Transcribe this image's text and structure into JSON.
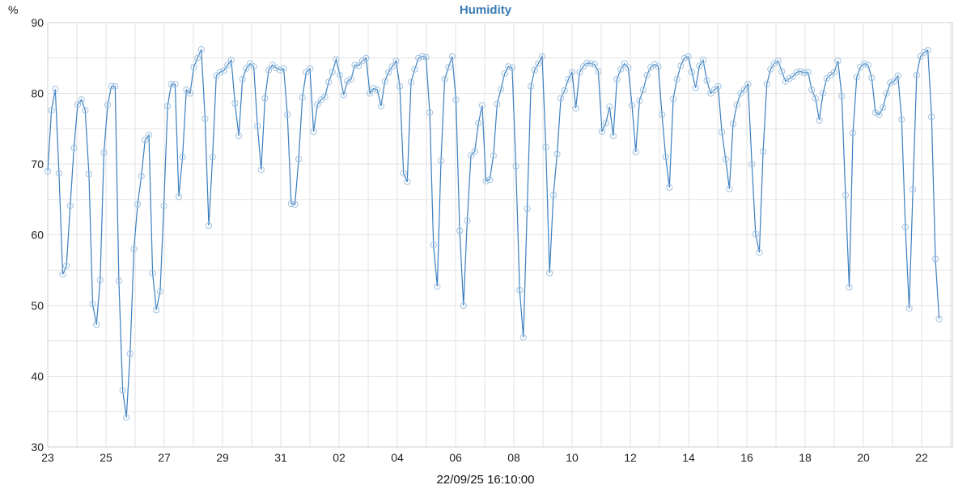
{
  "chart_data": {
    "type": "line",
    "title": "Humidity",
    "ylabel": "%",
    "footer_timestamp": "22/09/25 16:10:00",
    "ylim": [
      30,
      90
    ],
    "y_ticks": [
      30,
      40,
      50,
      60,
      70,
      80,
      90
    ],
    "x_tick_labels": [
      "23",
      "25",
      "27",
      "29",
      "31",
      "02",
      "04",
      "06",
      "08",
      "10",
      "12",
      "14",
      "16",
      "18",
      "20",
      "22"
    ],
    "x_range_days": [
      0,
      30.6
    ],
    "grid": true,
    "legend": "none",
    "colors": {
      "title": "#3a7ab5",
      "line": "#3b7fbf",
      "marker": "#9ec1e0",
      "grid": "#e2e2e2"
    },
    "series": [
      {
        "values": [
          69,
          77.6,
          80.6,
          68.7,
          54.4,
          55.6,
          64.1,
          72.3,
          78.4,
          79.1,
          77.6,
          68.6,
          50.2,
          47.3,
          53.6,
          71.6,
          78.4,
          81,
          81,
          53.5,
          38,
          34.2,
          43.2,
          58,
          64.3,
          68.3,
          73.4,
          74.1,
          54.6,
          49.4,
          52,
          64.1,
          78.2,
          81.3,
          81.3,
          65.4,
          71,
          80.5,
          80,
          83.7,
          85,
          86.2,
          76.4,
          61.3,
          71,
          82.5,
          83,
          83.2,
          84,
          84.7,
          78.6,
          74,
          82,
          83.5,
          84.2,
          83.8,
          75.4,
          69.2,
          79.3,
          83.3,
          84,
          83.6,
          83.3,
          83.5,
          77,
          64.4,
          64.3,
          70.7,
          79.4,
          83,
          83.5,
          74.6,
          78.4,
          79.1,
          79.5,
          81.6,
          83,
          84.8,
          82.6,
          79.8,
          81.7,
          82,
          84,
          83.9,
          84.6,
          85,
          80,
          80.7,
          80.5,
          78.2,
          81.7,
          83,
          83.8,
          84.6,
          81,
          68.7,
          67.5,
          81.6,
          83.4,
          85,
          85.2,
          85.1,
          77.3,
          58.6,
          52.7,
          70.5,
          82,
          83.7,
          85.2,
          79.1,
          60.6,
          50,
          62,
          71.2,
          71.8,
          75.8,
          78.3,
          67.6,
          67.8,
          71.2,
          78.5,
          80.6,
          82.8,
          83.8,
          83.6,
          69.7,
          52.2,
          45.5,
          63.7,
          81,
          83.3,
          84.2,
          85.2,
          72.4,
          54.6,
          65.6,
          71.4,
          79.3,
          80.4,
          82,
          83,
          77.9,
          83,
          83.8,
          84.3,
          84.2,
          84.1,
          83.1,
          74.6,
          75.8,
          78.1,
          74,
          82,
          83.4,
          84.2,
          83.6,
          78.3,
          71.7,
          79,
          80.5,
          82.6,
          83.7,
          84.1,
          83.8,
          77,
          71,
          66.7,
          79.2,
          82,
          83.9,
          85,
          85.2,
          83,
          80.8,
          83.9,
          84.7,
          81.8,
          80,
          80.5,
          81,
          74.5,
          70.7,
          66.5,
          75.7,
          78.4,
          80,
          80.6,
          81.3,
          70,
          60.1,
          57.5,
          71.8,
          81.3,
          83.4,
          84.2,
          84.6,
          83.1,
          81.7,
          82.1,
          82.4,
          83,
          83.1,
          82.9,
          83,
          80.5,
          79.3,
          76.2,
          80,
          82.1,
          82.6,
          83,
          84.6,
          79.6,
          65.6,
          52.6,
          74.4,
          82.3,
          83.7,
          84.2,
          84,
          82.2,
          77.3,
          77,
          78,
          80,
          81.5,
          81.7,
          82.5,
          76.3,
          61.1,
          49.6,
          66.4,
          82.6,
          85.2,
          85.8,
          86.1,
          76.7,
          56.6,
          48.1
        ]
      }
    ]
  }
}
